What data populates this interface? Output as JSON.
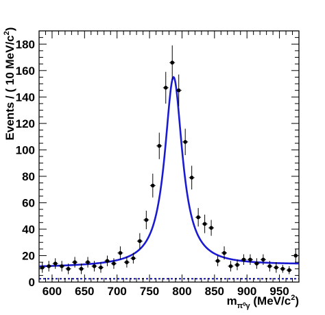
{
  "chart_data": {
    "type": "scatter",
    "title": "",
    "xlabel": {
      "main": "m",
      "sub": "π⁰γ",
      "unit_prefix": " (MeV/c",
      "unit_sup": "2",
      "unit_suffix": ")"
    },
    "ylabel": {
      "main": "Events / ( 10 MeV/c",
      "sup": "2",
      "suffix": ")"
    },
    "xlim": [
      580,
      980
    ],
    "ylim": [
      0,
      190
    ],
    "x_ticks": [
      600,
      650,
      700,
      750,
      800,
      850,
      900,
      950
    ],
    "x_tick_labels": [
      "600",
      "650",
      "700",
      "750",
      "800",
      "850",
      "900",
      "950"
    ],
    "y_ticks": [
      0,
      20,
      40,
      60,
      80,
      100,
      120,
      140,
      160,
      180
    ],
    "y_tick_labels": [
      "0",
      "20",
      "40",
      "60",
      "80",
      "100",
      "120",
      "140",
      "160",
      "180"
    ],
    "series": [
      {
        "kind": "data-points-with-errors",
        "color": "#000000",
        "points": [
          {
            "x": 585,
            "y": 11,
            "err": 4
          },
          {
            "x": 595,
            "y": 12,
            "err": 4
          },
          {
            "x": 605,
            "y": 14,
            "err": 4
          },
          {
            "x": 615,
            "y": 12,
            "err": 4
          },
          {
            "x": 625,
            "y": 10,
            "err": 4
          },
          {
            "x": 635,
            "y": 15,
            "err": 4
          },
          {
            "x": 645,
            "y": 10,
            "err": 4
          },
          {
            "x": 655,
            "y": 15,
            "err": 4
          },
          {
            "x": 665,
            "y": 12,
            "err": 4
          },
          {
            "x": 675,
            "y": 11,
            "err": 4
          },
          {
            "x": 685,
            "y": 16,
            "err": 4
          },
          {
            "x": 695,
            "y": 14,
            "err": 4
          },
          {
            "x": 705,
            "y": 22,
            "err": 5
          },
          {
            "x": 715,
            "y": 15,
            "err": 4
          },
          {
            "x": 725,
            "y": 18,
            "err": 4
          },
          {
            "x": 735,
            "y": 31,
            "err": 6
          },
          {
            "x": 745,
            "y": 47,
            "err": 7
          },
          {
            "x": 755,
            "y": 73,
            "err": 9
          },
          {
            "x": 765,
            "y": 103,
            "err": 10
          },
          {
            "x": 775,
            "y": 147,
            "err": 12
          },
          {
            "x": 785,
            "y": 166,
            "err": 13
          },
          {
            "x": 795,
            "y": 145,
            "err": 12
          },
          {
            "x": 805,
            "y": 106,
            "err": 10
          },
          {
            "x": 815,
            "y": 79,
            "err": 9
          },
          {
            "x": 825,
            "y": 49,
            "err": 7
          },
          {
            "x": 835,
            "y": 44,
            "err": 7
          },
          {
            "x": 845,
            "y": 41,
            "err": 6
          },
          {
            "x": 855,
            "y": 16,
            "err": 4
          },
          {
            "x": 865,
            "y": 22,
            "err": 5
          },
          {
            "x": 875,
            "y": 12,
            "err": 4
          },
          {
            "x": 885,
            "y": 13,
            "err": 4
          },
          {
            "x": 895,
            "y": 17,
            "err": 4
          },
          {
            "x": 905,
            "y": 17,
            "err": 4
          },
          {
            "x": 915,
            "y": 14,
            "err": 4
          },
          {
            "x": 925,
            "y": 17,
            "err": 4
          },
          {
            "x": 935,
            "y": 12,
            "err": 4
          },
          {
            "x": 945,
            "y": 11,
            "err": 4
          },
          {
            "x": 955,
            "y": 10,
            "err": 3
          },
          {
            "x": 965,
            "y": 9,
            "err": 3
          },
          {
            "x": 975,
            "y": 20,
            "err": 5
          }
        ]
      },
      {
        "kind": "fit-curve",
        "color": "#1a1ad0",
        "style": "solid",
        "model": {
          "peak_x": 787,
          "peak_height": 143,
          "width": 16.5,
          "bg_left": 11,
          "bg_right": 13
        }
      },
      {
        "kind": "background-curve",
        "color": "#1a1ad0",
        "style": "dashed",
        "level": 2.5
      }
    ],
    "grid": false,
    "legend": "none"
  }
}
